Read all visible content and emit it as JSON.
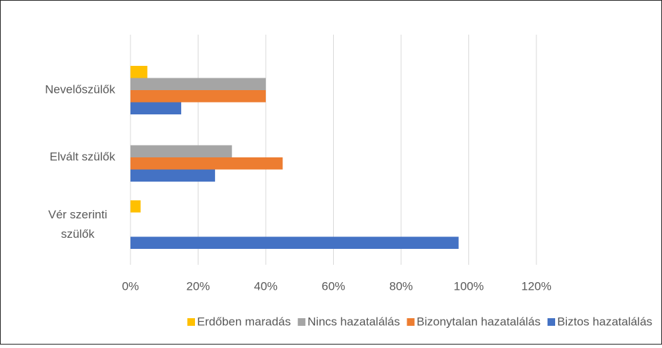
{
  "chart_data": {
    "type": "bar",
    "orientation": "horizontal",
    "categories": [
      "Vér szerinti szülők",
      "Elvált szülők",
      "Nevelőszülők"
    ],
    "series": [
      {
        "name": "Erdőben maradás",
        "color": "#FFC000",
        "values": [
          3,
          0,
          5
        ]
      },
      {
        "name": "Nincs hazatalálás",
        "color": "#A5A5A5",
        "values": [
          0,
          30,
          40
        ]
      },
      {
        "name": "Bizonytalan hazatalálás",
        "color": "#ED7D31",
        "values": [
          0,
          45,
          40
        ]
      },
      {
        "name": "Biztos hazatalálás",
        "color": "#4472C4",
        "values": [
          97,
          25,
          15
        ]
      }
    ],
    "xlim": [
      0,
      120
    ],
    "xticks": [
      {
        "value": 0,
        "label": "0%"
      },
      {
        "value": 20,
        "label": "20%"
      },
      {
        "value": 40,
        "label": "40%"
      },
      {
        "value": 60,
        "label": "60%"
      },
      {
        "value": 80,
        "label": "80%"
      },
      {
        "value": 100,
        "label": "100%"
      },
      {
        "value": 120,
        "label": "120%"
      }
    ],
    "grid": true,
    "legend": "bottom"
  }
}
